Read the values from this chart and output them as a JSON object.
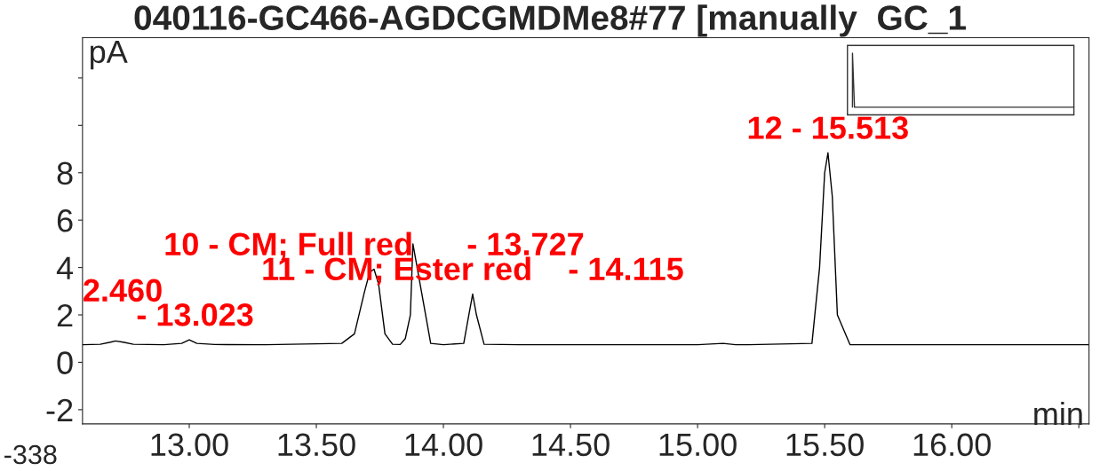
{
  "chart_data": {
    "type": "line",
    "title": "040116-GC466-AGDCGMDMe8#77 [manually  GC_1",
    "ylabel": "pA",
    "xlabel": "min",
    "x": [
      12.58,
      12.65,
      12.69,
      12.71,
      12.74,
      12.78,
      12.9,
      12.97,
      13.0,
      13.03,
      13.1,
      13.3,
      13.6,
      13.65,
      13.69,
      13.71,
      13.727,
      13.745,
      13.77,
      13.8,
      13.83,
      13.85,
      13.87,
      13.88,
      13.9,
      13.94,
      13.95,
      14.0,
      14.08,
      14.1,
      14.115,
      14.13,
      14.16,
      14.3,
      15.0,
      15.1,
      15.15,
      15.2,
      15.45,
      15.48,
      15.5,
      15.513,
      15.53,
      15.55,
      15.6,
      16.0,
      16.54
    ],
    "series": [
      {
        "color": "#000000",
        "values": [
          0.74,
          0.76,
          0.85,
          0.9,
          0.85,
          0.76,
          0.74,
          0.8,
          0.95,
          0.8,
          0.75,
          0.74,
          0.8,
          1.2,
          3.0,
          3.8,
          3.93,
          3.3,
          1.2,
          0.76,
          0.75,
          1.0,
          2.0,
          5.0,
          null,
          null,
          0.8,
          0.74,
          0.8,
          2.0,
          2.88,
          2.0,
          0.76,
          0.74,
          0.74,
          0.8,
          0.74,
          0.74,
          0.8,
          4.0,
          8.0,
          8.84,
          7.0,
          2.0,
          0.74,
          0.74,
          0.74
        ]
      }
    ],
    "xlim": [
      12.58,
      16.54
    ],
    "ylim": [
      -2.6,
      13.7
    ],
    "xticks": [
      {
        "value": 13.0,
        "label": "13.00"
      },
      {
        "value": 13.5,
        "label": "13.50"
      },
      {
        "value": 14.0,
        "label": "14.00"
      },
      {
        "value": 14.5,
        "label": "14.50"
      },
      {
        "value": 15.0,
        "label": "15.00"
      },
      {
        "value": 15.5,
        "label": "15.50"
      },
      {
        "value": 16.0,
        "label": "16.00"
      },
      {
        "value": 16.5,
        "label": null
      }
    ],
    "yticks": [
      -2,
      0,
      2,
      4,
      6,
      8,
      {
        "value": 10,
        "label": null
      },
      {
        "value": 12,
        "label": null
      }
    ],
    "annotations": [
      {
        "text": "10 - CM; Full red      - 13.727",
        "x": 13.727,
        "y": 3.93
      },
      {
        "text": "11 - CM; Ester red    - 14.115",
        "x": 14.115,
        "y": 2.88
      },
      {
        "text": "12 - 15.513",
        "x": 15.513,
        "y": 8.84
      },
      {
        "text": "- 13.023",
        "x": 13.023,
        "y": 0.95
      },
      "2.460",
      "-338"
    ],
    "grid": false,
    "legend": false,
    "marker": "none",
    "line_style": "solid"
  }
}
